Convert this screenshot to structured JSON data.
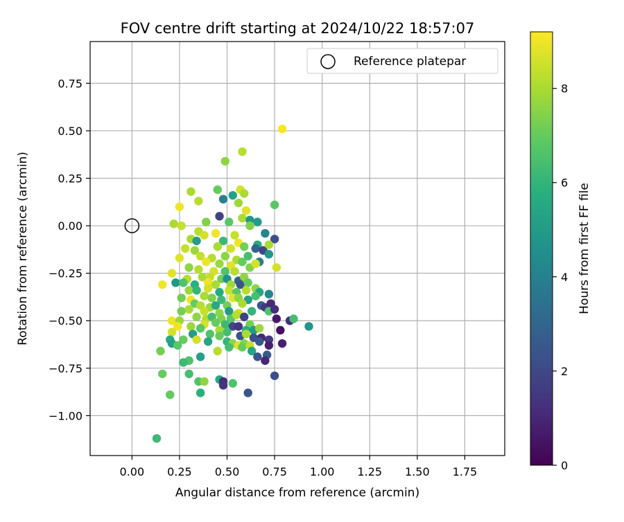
{
  "chart_data": {
    "type": "scatter",
    "title": "FOV centre drift starting at 2024/10/22 18:57:07",
    "xlabel": "Angular distance from reference (arcmin)",
    "ylabel": "Rotation from reference (arcmin)",
    "xlim": [
      -0.22,
      1.96
    ],
    "ylim": [
      -1.21,
      0.97
    ],
    "xticks": [
      "0.00",
      "0.25",
      "0.50",
      "0.75",
      "1.00",
      "1.25",
      "1.50",
      "1.75"
    ],
    "xtick_values": [
      0,
      0.25,
      0.5,
      0.75,
      1.0,
      1.25,
      1.5,
      1.75
    ],
    "yticks": [
      "0.75",
      "0.50",
      "0.25",
      "0.00",
      "−0.25",
      "−0.50",
      "−0.75",
      "−1.00"
    ],
    "ytick_values": [
      0.75,
      0.5,
      0.25,
      0,
      -0.25,
      -0.5,
      -0.75,
      -1.0
    ],
    "grid": true,
    "legend": {
      "placement": "top-right",
      "entries": [
        "Reference platepar"
      ]
    },
    "reference": {
      "x": 0.0,
      "y": 0.0
    },
    "colorbar": {
      "label": "Hours from first FF file",
      "range": [
        0,
        9.2
      ],
      "ticks": [
        "0",
        "2",
        "4",
        "6",
        "8"
      ],
      "tick_values": [
        0,
        2,
        4,
        6,
        8
      ],
      "colormap": "viridis"
    },
    "points": [
      [
        0.79,
        0.51,
        9.1
      ],
      [
        0.58,
        0.39,
        8.2
      ],
      [
        0.49,
        0.34,
        7.6
      ],
      [
        0.31,
        0.18,
        8.0
      ],
      [
        0.45,
        0.19,
        7.0
      ],
      [
        0.57,
        0.19,
        8.6
      ],
      [
        0.59,
        0.17,
        8.0
      ],
      [
        0.35,
        0.13,
        8.2
      ],
      [
        0.25,
        0.1,
        9.0
      ],
      [
        0.53,
        0.16,
        5.2
      ],
      [
        0.48,
        0.14,
        4.0
      ],
      [
        0.56,
        0.12,
        7.8
      ],
      [
        0.6,
        0.08,
        8.8
      ],
      [
        0.75,
        0.11,
        6.8
      ],
      [
        0.46,
        0.05,
        1.8
      ],
      [
        0.22,
        0.01,
        8.0
      ],
      [
        0.26,
        0.0,
        8.4
      ],
      [
        0.39,
        0.02,
        7.4
      ],
      [
        0.51,
        0.02,
        6.8
      ],
      [
        0.58,
        0.04,
        8.0
      ],
      [
        0.62,
        0.03,
        4.8
      ],
      [
        0.66,
        0.02,
        5.0
      ],
      [
        0.62,
        0.0,
        7.4
      ],
      [
        0.35,
        -0.03,
        8.2
      ],
      [
        0.38,
        -0.05,
        8.6
      ],
      [
        0.44,
        -0.04,
        9.0
      ],
      [
        0.54,
        -0.05,
        8.4
      ],
      [
        0.7,
        -0.04,
        4.2
      ],
      [
        0.31,
        -0.07,
        8.0
      ],
      [
        0.34,
        -0.08,
        5.0
      ],
      [
        0.48,
        -0.08,
        6.2
      ],
      [
        0.56,
        -0.09,
        9.0
      ],
      [
        0.66,
        -0.1,
        5.6
      ],
      [
        0.75,
        -0.07,
        2.2
      ],
      [
        0.28,
        -0.12,
        8.4
      ],
      [
        0.33,
        -0.13,
        7.8
      ],
      [
        0.45,
        -0.11,
        8.0
      ],
      [
        0.52,
        -0.12,
        8.6
      ],
      [
        0.59,
        -0.11,
        7.2
      ],
      [
        0.65,
        -0.12,
        3.0
      ],
      [
        0.69,
        -0.13,
        2.0
      ],
      [
        0.72,
        -0.1,
        8.0
      ],
      [
        0.25,
        -0.17,
        8.8
      ],
      [
        0.36,
        -0.16,
        8.4
      ],
      [
        0.42,
        -0.17,
        8.2
      ],
      [
        0.49,
        -0.16,
        7.6
      ],
      [
        0.55,
        -0.18,
        8.0
      ],
      [
        0.61,
        -0.16,
        6.4
      ],
      [
        0.67,
        -0.19,
        4.0
      ],
      [
        0.72,
        -0.15,
        4.8
      ],
      [
        0.39,
        -0.19,
        9.0
      ],
      [
        0.46,
        -0.2,
        7.8
      ],
      [
        0.52,
        -0.21,
        8.8
      ],
      [
        0.58,
        -0.19,
        7.0
      ],
      [
        0.3,
        -0.22,
        7.6
      ],
      [
        0.35,
        -0.23,
        8.2
      ],
      [
        0.43,
        -0.24,
        8.6
      ],
      [
        0.49,
        -0.24,
        6.6
      ],
      [
        0.54,
        -0.24,
        8.2
      ],
      [
        0.62,
        -0.22,
        7.4
      ],
      [
        0.65,
        -0.2,
        8.6
      ],
      [
        0.21,
        -0.25,
        8.8
      ],
      [
        0.76,
        -0.22,
        8.6
      ],
      [
        0.37,
        -0.27,
        8.0
      ],
      [
        0.41,
        -0.27,
        8.4
      ],
      [
        0.47,
        -0.28,
        7.2
      ],
      [
        0.5,
        -0.28,
        4.6
      ],
      [
        0.56,
        -0.29,
        2.8
      ],
      [
        0.59,
        -0.27,
        7.6
      ],
      [
        0.29,
        -0.28,
        8.2
      ],
      [
        0.23,
        -0.3,
        4.8
      ],
      [
        0.27,
        -0.3,
        6.6
      ],
      [
        0.33,
        -0.31,
        5.8
      ],
      [
        0.4,
        -0.3,
        9.0
      ],
      [
        0.44,
        -0.31,
        8.0
      ],
      [
        0.52,
        -0.31,
        7.8
      ],
      [
        0.57,
        -0.31,
        2.4
      ],
      [
        0.61,
        -0.3,
        7.0
      ],
      [
        0.16,
        -0.31,
        9.0
      ],
      [
        0.3,
        -0.34,
        7.8
      ],
      [
        0.34,
        -0.34,
        6.0
      ],
      [
        0.4,
        -0.33,
        8.6
      ],
      [
        0.46,
        -0.35,
        5.6
      ],
      [
        0.51,
        -0.34,
        8.4
      ],
      [
        0.55,
        -0.35,
        6.8
      ],
      [
        0.6,
        -0.34,
        8.2
      ],
      [
        0.65,
        -0.33,
        7.6
      ],
      [
        0.67,
        -0.35,
        5.4
      ],
      [
        0.72,
        -0.36,
        4.2
      ],
      [
        0.26,
        -0.38,
        7.2
      ],
      [
        0.31,
        -0.39,
        9.0
      ],
      [
        0.38,
        -0.37,
        8.0
      ],
      [
        0.42,
        -0.38,
        7.4
      ],
      [
        0.47,
        -0.39,
        6.2
      ],
      [
        0.53,
        -0.38,
        8.8
      ],
      [
        0.56,
        -0.38,
        7.6
      ],
      [
        0.61,
        -0.39,
        5.2
      ],
      [
        0.65,
        -0.37,
        6.4
      ],
      [
        0.33,
        -0.41,
        7.0
      ],
      [
        0.36,
        -0.42,
        8.2
      ],
      [
        0.41,
        -0.43,
        7.8
      ],
      [
        0.44,
        -0.42,
        5.6
      ],
      [
        0.5,
        -0.42,
        7.2
      ],
      [
        0.58,
        -0.41,
        8.0
      ],
      [
        0.68,
        -0.42,
        2.6
      ],
      [
        0.7,
        -0.43,
        1.6
      ],
      [
        0.73,
        -0.41,
        1.0
      ],
      [
        0.26,
        -0.45,
        7.2
      ],
      [
        0.3,
        -0.44,
        8.0
      ],
      [
        0.38,
        -0.45,
        8.4
      ],
      [
        0.46,
        -0.46,
        7.6
      ],
      [
        0.51,
        -0.45,
        5.0
      ],
      [
        0.56,
        -0.46,
        8.6
      ],
      [
        0.63,
        -0.45,
        6.0
      ],
      [
        0.72,
        -0.45,
        6.6
      ],
      [
        0.75,
        -0.44,
        1.2
      ],
      [
        0.34,
        -0.48,
        7.6
      ],
      [
        0.39,
        -0.49,
        8.2
      ],
      [
        0.42,
        -0.48,
        6.4
      ],
      [
        0.47,
        -0.49,
        7.4
      ],
      [
        0.52,
        -0.49,
        6.8
      ],
      [
        0.55,
        -0.47,
        8.2
      ],
      [
        0.59,
        -0.48,
        1.8
      ],
      [
        0.21,
        -0.5,
        9.0
      ],
      [
        0.25,
        -0.5,
        7.8
      ],
      [
        0.38,
        -0.52,
        8.6
      ],
      [
        0.44,
        -0.51,
        7.0
      ],
      [
        0.49,
        -0.52,
        6.2
      ],
      [
        0.53,
        -0.53,
        2.0
      ],
      [
        0.56,
        -0.53,
        1.4
      ],
      [
        0.62,
        -0.52,
        7.2
      ],
      [
        0.76,
        -0.49,
        0.6
      ],
      [
        0.83,
        -0.5,
        1.2
      ],
      [
        0.85,
        -0.49,
        6.4
      ],
      [
        0.93,
        -0.53,
        4.8
      ],
      [
        0.24,
        -0.53,
        9.0
      ],
      [
        0.31,
        -0.53,
        7.8
      ],
      [
        0.36,
        -0.54,
        6.8
      ],
      [
        0.46,
        -0.55,
        8.0
      ],
      [
        0.5,
        -0.56,
        6.4
      ],
      [
        0.6,
        -0.55,
        5.8
      ],
      [
        0.64,
        -0.55,
        5.0
      ],
      [
        0.67,
        -0.54,
        7.8
      ],
      [
        0.78,
        -0.55,
        0.4
      ],
      [
        0.21,
        -0.56,
        8.6
      ],
      [
        0.32,
        -0.57,
        5.0
      ],
      [
        0.41,
        -0.57,
        6.6
      ],
      [
        0.46,
        -0.58,
        7.0
      ],
      [
        0.57,
        -0.58,
        2.4
      ],
      [
        0.6,
        -0.57,
        8.0
      ],
      [
        0.64,
        -0.59,
        2.2
      ],
      [
        0.68,
        -0.59,
        1.0
      ],
      [
        0.72,
        -0.6,
        1.6
      ],
      [
        0.2,
        -0.6,
        5.6
      ],
      [
        0.27,
        -0.6,
        7.0
      ],
      [
        0.34,
        -0.6,
        8.6
      ],
      [
        0.4,
        -0.61,
        5.4
      ],
      [
        0.5,
        -0.61,
        6.0
      ],
      [
        0.53,
        -0.62,
        7.6
      ],
      [
        0.56,
        -0.63,
        8.8
      ],
      [
        0.59,
        -0.62,
        7.4
      ],
      [
        0.67,
        -0.61,
        2.6
      ],
      [
        0.72,
        -0.63,
        0.8
      ],
      [
        0.79,
        -0.62,
        0.8
      ],
      [
        0.21,
        -0.62,
        5.2
      ],
      [
        0.24,
        -0.63,
        6.8
      ],
      [
        0.51,
        -0.64,
        6.4
      ],
      [
        0.58,
        -0.64,
        7.0
      ],
      [
        0.62,
        -0.63,
        8.4
      ],
      [
        0.15,
        -0.66,
        7.2
      ],
      [
        0.45,
        -0.66,
        8.2
      ],
      [
        0.63,
        -0.66,
        5.4
      ],
      [
        0.36,
        -0.69,
        5.2
      ],
      [
        0.3,
        -0.71,
        6.6
      ],
      [
        0.27,
        -0.72,
        6.2
      ],
      [
        0.66,
        -0.69,
        2.4
      ],
      [
        0.71,
        -0.68,
        2.6
      ],
      [
        0.7,
        -0.71,
        1.0
      ],
      [
        0.3,
        -0.78,
        6.4
      ],
      [
        0.16,
        -0.78,
        7.0
      ],
      [
        0.35,
        -0.82,
        6.6
      ],
      [
        0.38,
        -0.82,
        7.6
      ],
      [
        0.46,
        -0.81,
        5.6
      ],
      [
        0.48,
        -0.82,
        1.2
      ],
      [
        0.53,
        -0.83,
        6.6
      ],
      [
        0.75,
        -0.79,
        2.2
      ],
      [
        0.48,
        -0.84,
        1.4
      ],
      [
        0.36,
        -0.88,
        5.8
      ],
      [
        0.61,
        -0.88,
        2.4
      ],
      [
        0.2,
        -0.89,
        7.0
      ],
      [
        0.13,
        -1.12,
        6.2
      ]
    ]
  }
}
